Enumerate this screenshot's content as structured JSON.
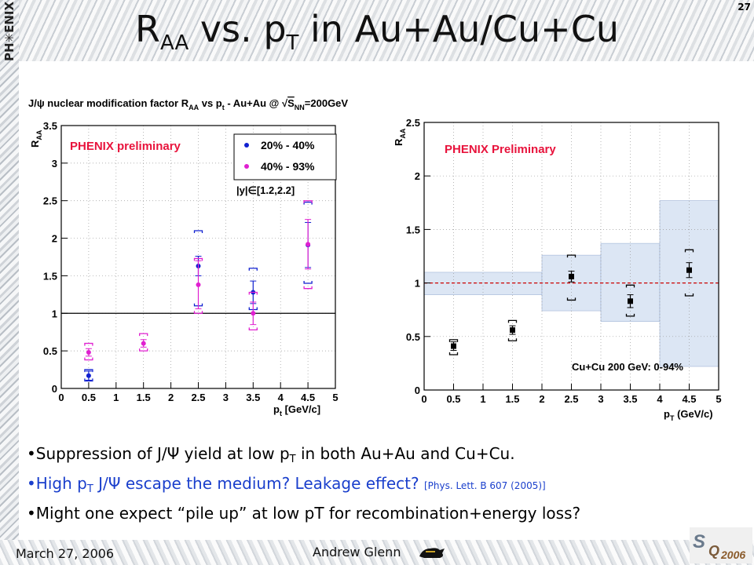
{
  "slide": {
    "logo_text": "PH✳ENIX",
    "title_main": "R",
    "title_sub": "AA",
    "title_mid": " vs. p",
    "title_sub2": "T",
    "title_end": " in Au+Au/Cu+Cu",
    "page_number": "27"
  },
  "bullets": {
    "b1_a": "•Suppression of J/Ψ yield at low p",
    "b1_sub": "T",
    "b1_b": " in both Au+Au and Cu+Cu.",
    "b2_a": "•High p",
    "b2_sub": "T",
    "b2_b": " J/Ψ escape the medium? Leakage effect? ",
    "b2_ref": "[Phys. Lett. B 607 (2005)]",
    "b3": "•Might one expect “pile up” at low pT for recombination+energy loss?"
  },
  "footer": {
    "date": "March 27, 2006",
    "author": "Andrew Glenn",
    "conference_logo": "SQM2006"
  },
  "chart_data": [
    {
      "type": "scatter",
      "title": "J/ψ nuclear modification factor R_AA vs p_t - Au+Au @ √S_NN=200GeV",
      "title_parts": {
        "a": "J/ψ nuclear modification factor R",
        "a_sub": "AA",
        "b": " vs p",
        "b_sub": "t",
        "c": " - Au+Au @ ",
        "d": "S",
        "d_sub": "NN",
        "e": "=200GeV"
      },
      "annotation": "PHENIX preliminary",
      "rapidity_label": "|y|∈[1.2,2.2]",
      "xlabel": "p",
      "xlabel_sub": "t",
      "xlabel_unit": " [GeV/c]",
      "ylabel": "R",
      "ylabel_sub": "AA",
      "xlim": [
        0,
        5
      ],
      "ylim": [
        0,
        3.5
      ],
      "x_ticks": [
        "0",
        "0.5",
        "1",
        "1.5",
        "2",
        "2.5",
        "3",
        "3.5",
        "4",
        "4.5",
        "5"
      ],
      "y_ticks": [
        "0",
        "0.5",
        "1",
        "1.5",
        "2",
        "2.5",
        "3",
        "3.5"
      ],
      "reference_line": 1,
      "legend_position": "top-right",
      "series": [
        {
          "name": "20% - 40%",
          "color": "#1020d0",
          "x": [
            0.5,
            2.5,
            3.5,
            4.5
          ],
          "y": [
            0.17,
            1.63,
            1.28,
            1.91
          ],
          "stat_err": [
            0.06,
            0.13,
            0.15,
            0.3
          ],
          "sys_low": [
            0.1,
            1.1,
            1.05,
            1.4
          ],
          "sys_high": [
            0.25,
            2.1,
            1.6,
            2.48
          ]
        },
        {
          "name": "40% - 93%",
          "color": "#e020d0",
          "x": [
            0.5,
            1.5,
            2.5,
            3.5,
            4.5
          ],
          "y": [
            0.48,
            0.6,
            1.38,
            1.0,
            1.92
          ],
          "stat_err": [
            0.05,
            0.05,
            0.32,
            0.15,
            0.33
          ],
          "sys_low": [
            0.38,
            0.5,
            1.0,
            0.78,
            1.33
          ],
          "sys_high": [
            0.6,
            0.73,
            1.73,
            1.28,
            2.5
          ]
        }
      ]
    },
    {
      "type": "scatter",
      "annotation": "PHENIX Preliminary",
      "sub_annotation": "Cu+Cu 200 GeV: 0-94%",
      "xlabel": "p",
      "xlabel_sub": "T",
      "xlabel_unit": " (GeV/c)",
      "ylabel": "R",
      "ylabel_sub": "AA",
      "xlim": [
        0,
        5
      ],
      "ylim": [
        0,
        2.5
      ],
      "x_ticks": [
        "0",
        "0.5",
        "1",
        "1.5",
        "2",
        "2.5",
        "3",
        "3.5",
        "4",
        "4.5",
        "5"
      ],
      "y_ticks": [
        "0",
        "0.5",
        "1",
        "1.5",
        "2",
        "2.5"
      ],
      "reference_line": 1,
      "global_uncertainty_bands": [
        {
          "x0": 0,
          "x1": 2,
          "y_low": 0.89,
          "y_high": 1.1
        },
        {
          "x0": 2,
          "x1": 3,
          "y_low": 0.74,
          "y_high": 1.26
        },
        {
          "x0": 3,
          "x1": 4,
          "y_low": 0.64,
          "y_high": 1.37
        },
        {
          "x0": 4,
          "x1": 5,
          "y_low": 0.22,
          "y_high": 1.77
        }
      ],
      "series": [
        {
          "color": "#000000",
          "x": [
            0.5,
            1.5,
            2.5,
            3.5,
            4.5
          ],
          "y": [
            0.41,
            0.56,
            1.06,
            0.83,
            1.12
          ],
          "stat_err": [
            0.04,
            0.04,
            0.05,
            0.06,
            0.07
          ],
          "sys_low": [
            0.33,
            0.46,
            0.84,
            0.69,
            0.88
          ],
          "sys_high": [
            0.47,
            0.65,
            1.26,
            0.98,
            1.31
          ]
        }
      ]
    }
  ]
}
